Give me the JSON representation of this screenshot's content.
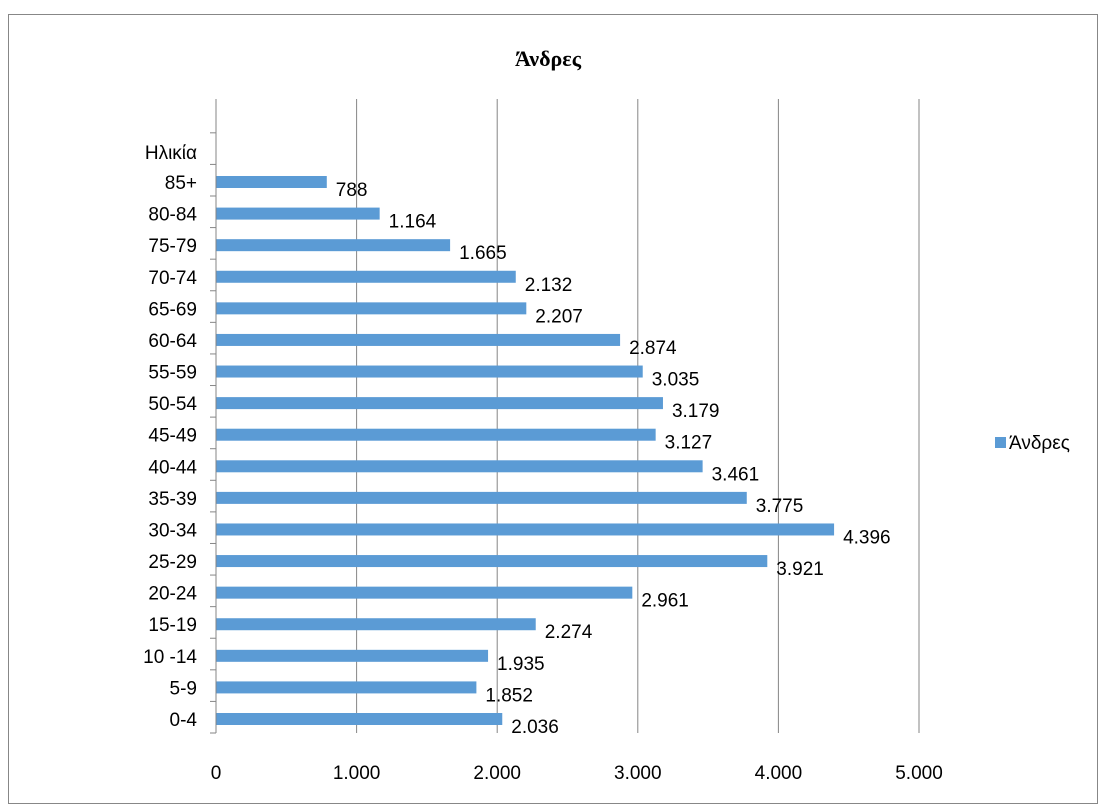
{
  "chart_data": {
    "type": "bar",
    "orientation": "horizontal",
    "title": "Άνδρες",
    "ylabel": "Ηλικία",
    "categories": [
      "0-4",
      "5-9",
      "10 -14",
      "15-19",
      "20-24",
      "25-29",
      "30-34",
      "35-39",
      "40-44",
      "45-49",
      "50-54",
      "55-59",
      "60-64",
      "65-69",
      "70-74",
      "75-79",
      "80-84",
      "85+"
    ],
    "series": [
      {
        "name": "Άνδρες",
        "values": [
          2036,
          1852,
          1935,
          2274,
          2961,
          3921,
          4396,
          3775,
          3461,
          3127,
          3179,
          3035,
          2874,
          2207,
          2132,
          1665,
          1164,
          788
        ],
        "color": "#5B9BD5"
      }
    ],
    "data_labels": [
      "2.036",
      "1.852",
      "1.935",
      "2.274",
      "2.961",
      "3.921",
      "4.396",
      "3.775",
      "3.461",
      "3.127",
      "3.179",
      "3.035",
      "2.874",
      "2.207",
      "2.132",
      "1.665",
      "1.164",
      "788"
    ],
    "xlim": [
      0,
      5000
    ],
    "x_ticks": [
      0,
      1000,
      2000,
      3000,
      4000,
      5000
    ],
    "x_tick_labels": [
      "0",
      "1.000",
      "2.000",
      "3.000",
      "4.000",
      "5.000"
    ],
    "grid": true,
    "legend_position": "right"
  }
}
